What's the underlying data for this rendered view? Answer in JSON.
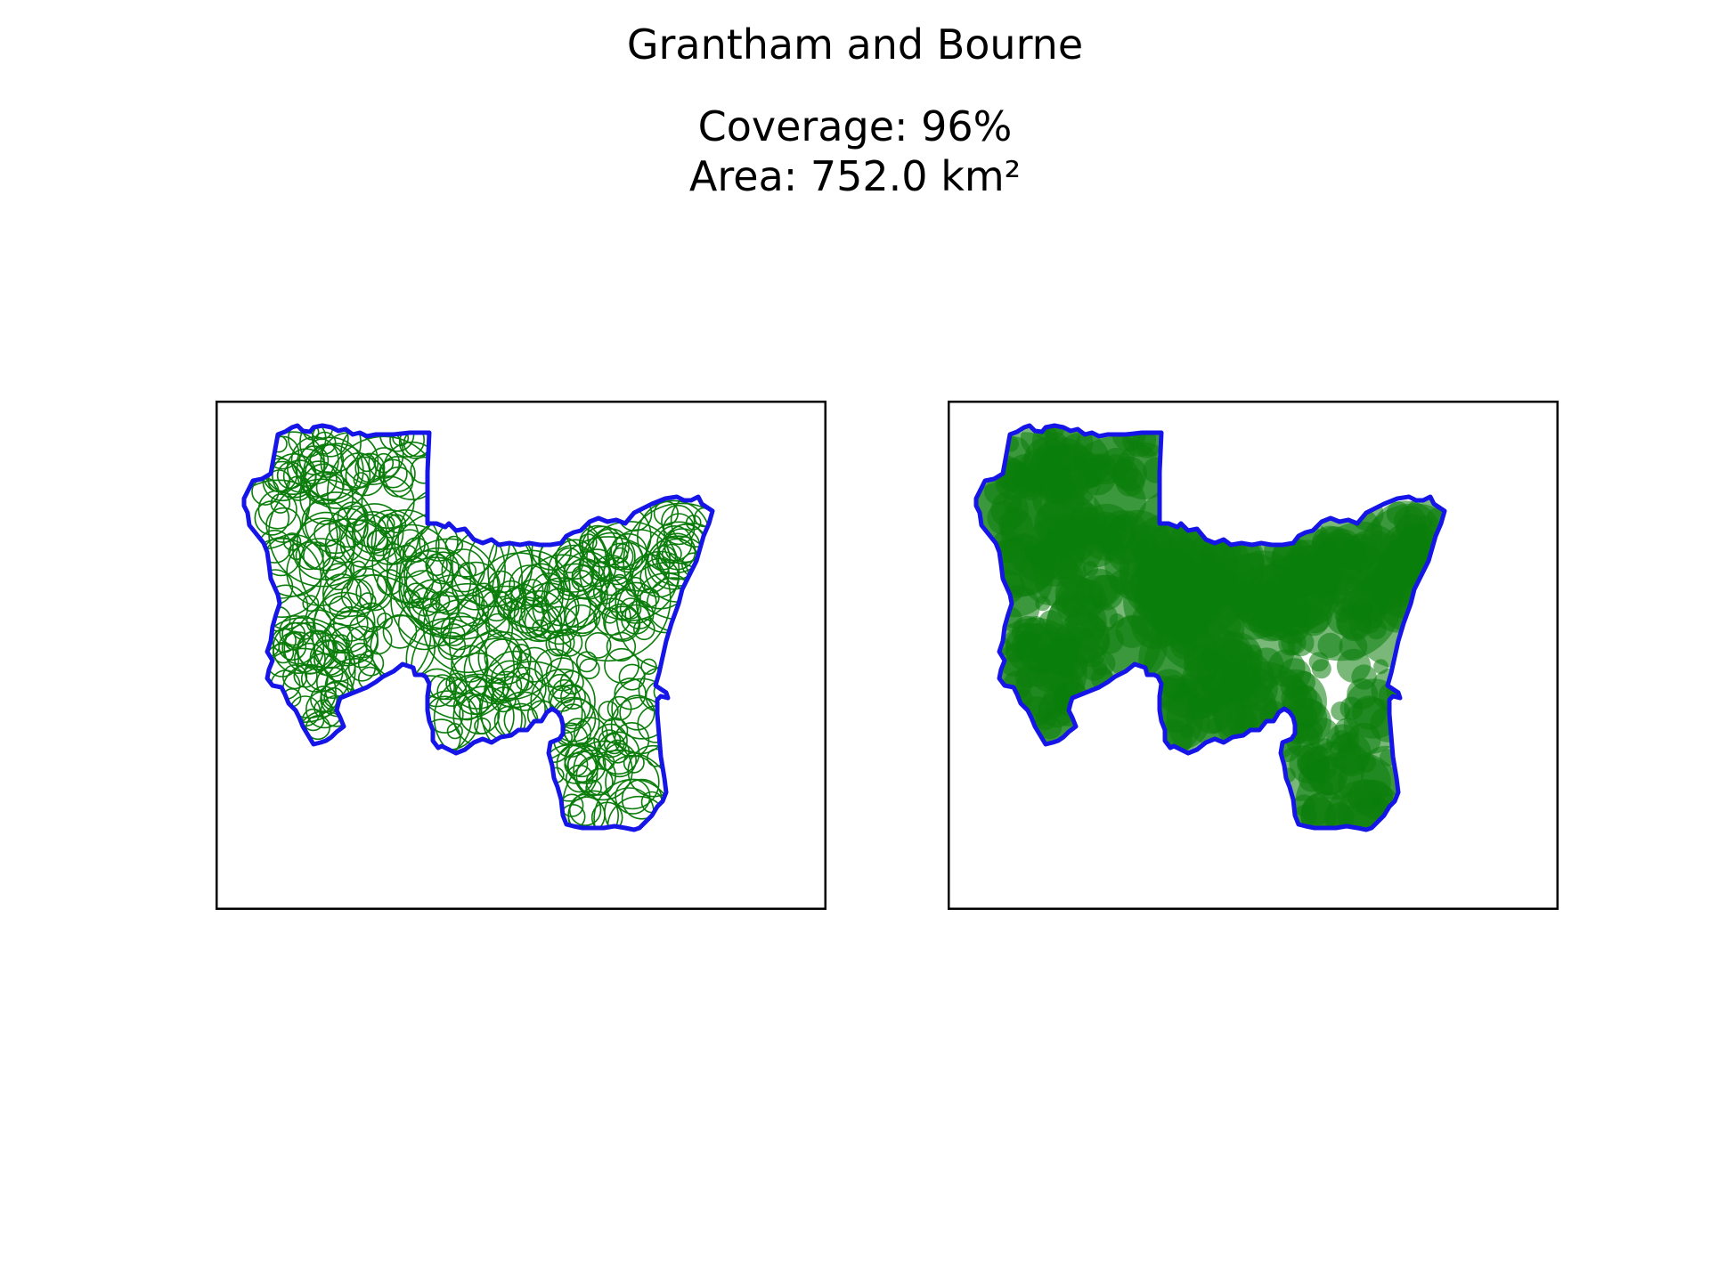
{
  "figure": {
    "title": "Grantham and Bourne",
    "subtitle_lines": [
      "Coverage: 96%",
      "Area: 752.0 km²"
    ]
  },
  "panels": [
    {
      "name": "circle-outlines-panel",
      "style": "outline"
    },
    {
      "name": "circle-filled-panel",
      "style": "filled"
    }
  ],
  "colors": {
    "boundary": "#1515e8",
    "circles": "#0b7d0b",
    "frame": "#000000",
    "background": "#ffffff"
  }
}
